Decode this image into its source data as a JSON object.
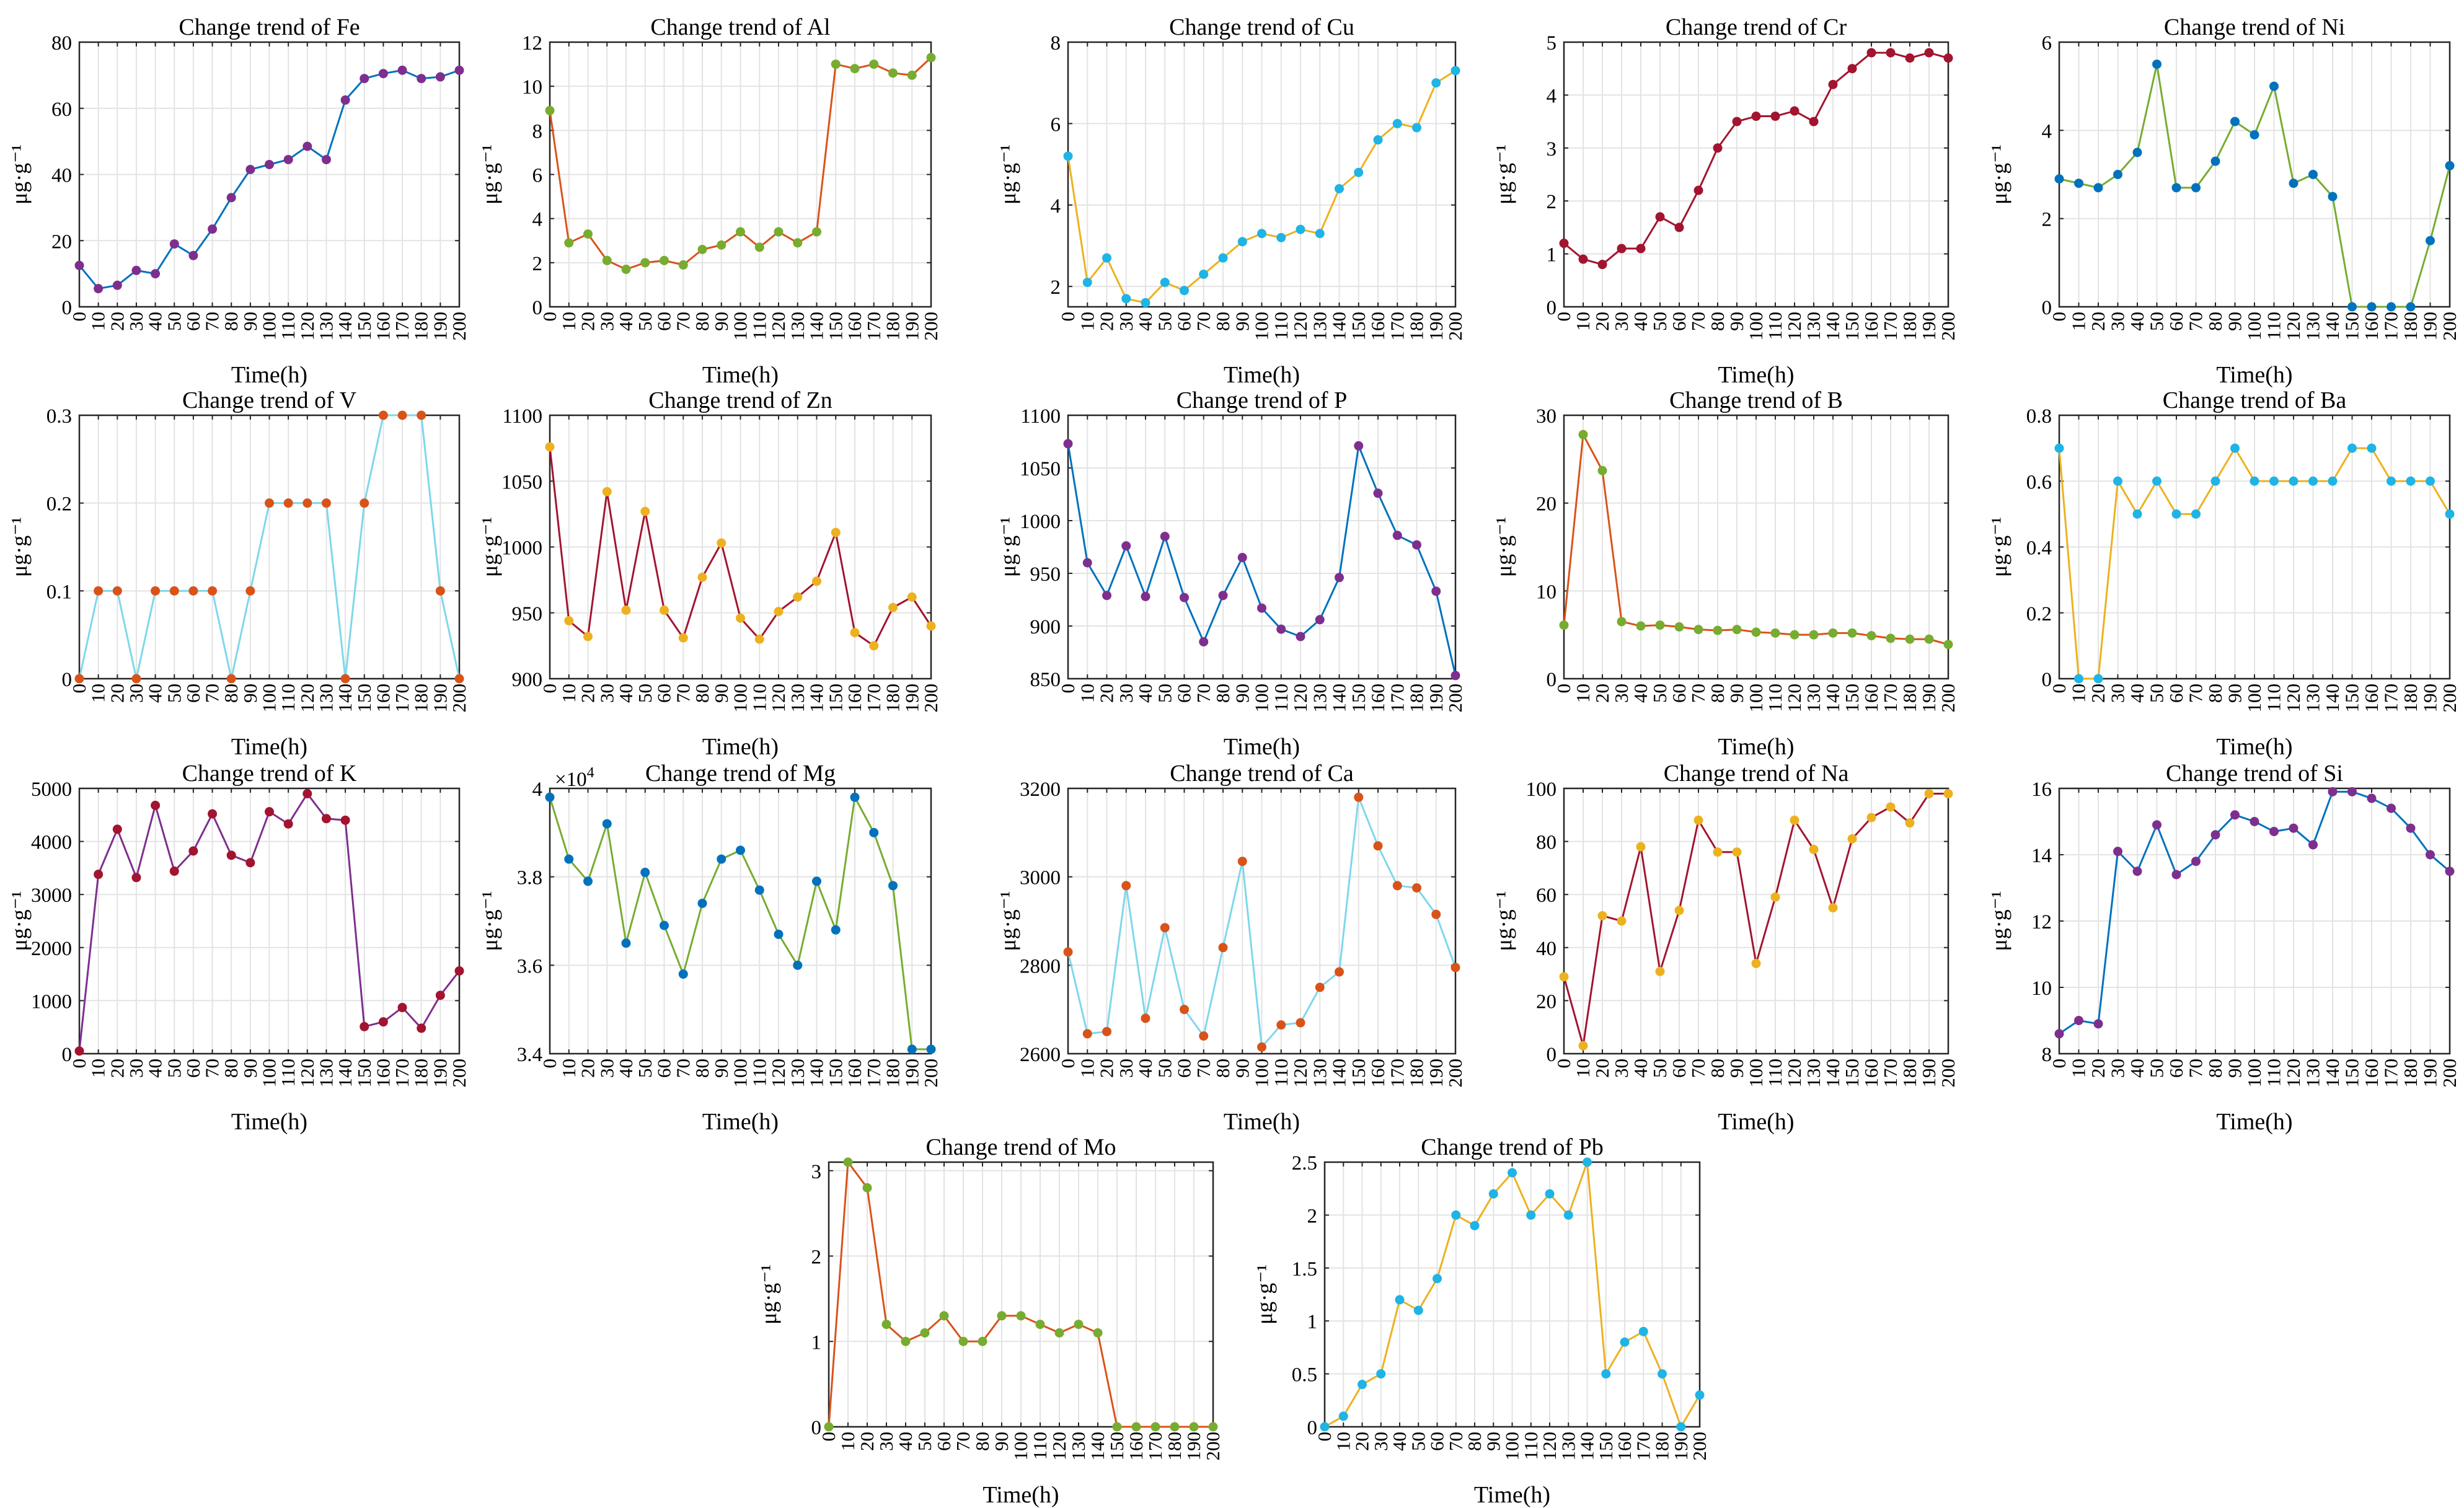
{
  "figure": {
    "background": "#ffffff"
  },
  "colors": {
    "purple": "#7e2f8e",
    "blue": "#0072bd",
    "orange": "#d95319",
    "yellow": "#edb120",
    "green": "#77ac30",
    "cyan": "#1eb4e6",
    "red": "#a2142f",
    "lightcyan": "#7fd7ec",
    "grid": "#e3e3e3",
    "axis": "#262626"
  },
  "x_ticks": [
    0,
    10,
    20,
    30,
    40,
    50,
    60,
    70,
    80,
    90,
    100,
    110,
    120,
    130,
    140,
    150,
    160,
    170,
    180,
    190,
    200
  ],
  "xlabel": "Time(h)",
  "ylabel": "μg·g⁻¹",
  "chart_data": [
    {
      "id": "fe",
      "type": "line",
      "title": "Change trend of Fe",
      "xlabel": "Time(h)",
      "ylabel": "μg·g⁻¹",
      "ylim": [
        0,
        80
      ],
      "yticks": [
        "0",
        "20",
        "40",
        "60",
        "80"
      ],
      "line_color": "#0072bd",
      "marker_colors": [
        "#7e2f8e"
      ],
      "values": [
        12.5,
        5.5,
        6.5,
        11,
        10,
        19,
        15.5,
        23.5,
        33,
        41.5,
        43,
        44.5,
        48.5,
        44.5,
        62.5,
        69,
        70.5,
        71.5,
        69,
        69.5,
        71.5
      ]
    },
    {
      "id": "al",
      "type": "line",
      "title": "Change trend of Al",
      "xlabel": "Time(h)",
      "ylabel": "μg·g⁻¹",
      "ylim": [
        0,
        12
      ],
      "yticks": [
        "0",
        "2",
        "4",
        "6",
        "8",
        "10",
        "12"
      ],
      "line_color": "#d95319",
      "marker_colors": [
        "#77ac30"
      ],
      "values": [
        8.9,
        2.9,
        3.3,
        2.1,
        1.7,
        2.0,
        2.1,
        1.9,
        2.6,
        2.8,
        3.4,
        2.7,
        3.4,
        2.9,
        3.4,
        11.0,
        10.8,
        11.0,
        10.6,
        10.5,
        11.3
      ]
    },
    {
      "id": "cu",
      "type": "line",
      "title": "Change trend of Cu",
      "xlabel": "Time(h)",
      "ylabel": "μg·g⁻¹",
      "ylim": [
        1.5,
        8
      ],
      "yticks": [
        "2",
        "4",
        "6",
        "8"
      ],
      "ytick_values": [
        2,
        4,
        6,
        8
      ],
      "line_color": "#edb120",
      "marker_colors": [
        "#1eb4e6"
      ],
      "values": [
        5.2,
        2.1,
        2.7,
        1.7,
        1.6,
        2.1,
        1.9,
        2.3,
        2.7,
        3.1,
        3.3,
        3.2,
        3.4,
        3.3,
        4.4,
        4.8,
        5.6,
        6.0,
        5.9,
        7.0,
        7.3
      ]
    },
    {
      "id": "cr",
      "type": "line",
      "title": "Change trend of Cr",
      "xlabel": "Time(h)",
      "ylabel": "μg·g⁻¹",
      "ylim": [
        0,
        5
      ],
      "yticks": [
        "0",
        "1",
        "2",
        "3",
        "4",
        "5"
      ],
      "line_color": "#a2142f",
      "marker_colors": [
        "#a2142f"
      ],
      "values": [
        1.2,
        0.9,
        0.8,
        1.1,
        1.1,
        1.7,
        1.5,
        2.2,
        3.0,
        3.5,
        3.6,
        3.6,
        3.7,
        3.5,
        4.2,
        4.5,
        4.8,
        4.8,
        4.7,
        4.8,
        4.7
      ]
    },
    {
      "id": "ni",
      "type": "line",
      "title": "Change trend of Ni",
      "xlabel": "Time(h)",
      "ylabel": "μg·g⁻¹",
      "ylim": [
        0,
        6
      ],
      "yticks": [
        "0",
        "2",
        "4",
        "6"
      ],
      "line_color": "#77ac30",
      "marker_colors": [
        "#0072bd"
      ],
      "values": [
        2.9,
        2.8,
        2.7,
        3.0,
        3.5,
        5.5,
        2.7,
        2.7,
        3.3,
        4.2,
        3.9,
        5.0,
        2.8,
        3.0,
        2.5,
        0,
        0,
        0,
        0,
        1.5,
        3.2
      ]
    },
    {
      "id": "v",
      "type": "line",
      "title": "Change trend of V",
      "xlabel": "Time(h)",
      "ylabel": "μg·g⁻¹",
      "ylim": [
        0,
        0.3
      ],
      "yticks": [
        "0",
        "0.1",
        "0.2",
        "0.3"
      ],
      "line_color": "#7fd7ec",
      "marker_colors": [
        "#d95319"
      ],
      "values": [
        0,
        0.1,
        0.1,
        0,
        0.1,
        0.1,
        0.1,
        0.1,
        0,
        0.1,
        0.2,
        0.2,
        0.2,
        0.2,
        0,
        0.2,
        0.3,
        0.3,
        0.3,
        0.1,
        0
      ]
    },
    {
      "id": "zn",
      "type": "line",
      "title": "Change trend of Zn",
      "xlabel": "Time(h)",
      "ylabel": "μg·g⁻¹",
      "ylim": [
        900,
        1100
      ],
      "yticks": [
        "900",
        "950",
        "1000",
        "1050",
        "1100"
      ],
      "line_color": "#a2142f",
      "marker_colors": [
        "#edb120"
      ],
      "values": [
        1076,
        944,
        932,
        1042,
        952,
        1027,
        952,
        931,
        977,
        1003,
        946,
        930,
        951,
        962,
        974,
        1011,
        935,
        925,
        954,
        962,
        940
      ]
    },
    {
      "id": "p",
      "type": "line",
      "title": "Change trend of P",
      "xlabel": "Time(h)",
      "ylabel": "μg·g⁻¹",
      "ylim": [
        850,
        1100
      ],
      "yticks": [
        "850",
        "900",
        "950",
        "1000",
        "1050",
        "1100"
      ],
      "line_color": "#0072bd",
      "marker_colors": [
        "#7e2f8e"
      ],
      "values": [
        1073,
        960,
        929,
        976,
        928,
        985,
        927,
        885,
        929,
        965,
        917,
        897,
        890,
        906,
        946,
        1071,
        1026,
        986,
        977,
        933,
        853
      ]
    },
    {
      "id": "b",
      "type": "line",
      "title": "Change trend of B",
      "xlabel": "Time(h)",
      "ylabel": "μg·g⁻¹",
      "ylim": [
        0,
        30
      ],
      "yticks": [
        "0",
        "10",
        "20",
        "30"
      ],
      "line_color": "#d95319",
      "marker_colors": [
        "#77ac30"
      ],
      "values": [
        6.1,
        27.8,
        23.7,
        6.5,
        6.0,
        6.1,
        5.9,
        5.6,
        5.5,
        5.6,
        5.3,
        5.2,
        5.0,
        5.0,
        5.2,
        5.2,
        4.9,
        4.6,
        4.5,
        4.5,
        3.9
      ]
    },
    {
      "id": "ba",
      "type": "line",
      "title": "Change trend of Ba",
      "xlabel": "Time(h)",
      "ylabel": "μg·g⁻¹",
      "ylim": [
        0,
        0.8
      ],
      "yticks": [
        "0",
        "0.2",
        "0.4",
        "0.6",
        "0.8"
      ],
      "line_color": "#edb120",
      "marker_colors": [
        "#1eb4e6"
      ],
      "values": [
        0.7,
        0,
        0,
        0.6,
        0.5,
        0.6,
        0.5,
        0.5,
        0.6,
        0.7,
        0.6,
        0.6,
        0.6,
        0.6,
        0.6,
        0.7,
        0.7,
        0.6,
        0.6,
        0.6,
        0.5
      ]
    },
    {
      "id": "k",
      "type": "line",
      "title": "Change trend of K",
      "xlabel": "Time(h)",
      "ylabel": "μg·g⁻¹",
      "ylim": [
        0,
        5000
      ],
      "yticks": [
        "0",
        "1000",
        "2000",
        "3000",
        "4000",
        "5000"
      ],
      "line_color": "#7e2f8e",
      "marker_colors": [
        "#a2142f"
      ],
      "values": [
        50,
        3380,
        4230,
        3320,
        4680,
        3440,
        3820,
        4520,
        3740,
        3600,
        4560,
        4330,
        4900,
        4430,
        4400,
        510,
        600,
        870,
        480,
        1100,
        1560
      ]
    },
    {
      "id": "mg",
      "type": "line",
      "title": "Change trend of Mg",
      "xlabel": "Time(h)",
      "ylabel": "μg·g⁻¹",
      "ylim": [
        3.4,
        4
      ],
      "yticks": [
        "3.4",
        "3.6",
        "3.8",
        "4"
      ],
      "exponent_label": "×10",
      "exponent_power": "4",
      "line_color": "#77ac30",
      "marker_colors": [
        "#0072bd"
      ],
      "values": [
        3.98,
        3.84,
        3.79,
        3.92,
        3.65,
        3.81,
        3.69,
        3.58,
        3.74,
        3.84,
        3.86,
        3.77,
        3.67,
        3.6,
        3.79,
        3.68,
        3.98,
        3.9,
        3.78,
        3.41,
        3.41
      ]
    },
    {
      "id": "ca",
      "type": "line",
      "title": "Change trend of Ca",
      "xlabel": "Time(h)",
      "ylabel": "μg·g⁻¹",
      "ylim": [
        2600,
        3200
      ],
      "yticks": [
        "2600",
        "2800",
        "3000",
        "3200"
      ],
      "line_color": "#7fd7ec",
      "marker_colors": [
        "#d95319"
      ],
      "values": [
        2830,
        2645,
        2650,
        2980,
        2680,
        2885,
        2700,
        2640,
        2840,
        3035,
        2615,
        2665,
        2670,
        2750,
        2785,
        3180,
        3070,
        2980,
        2975,
        2915,
        2795
      ]
    },
    {
      "id": "na",
      "type": "line",
      "title": "Change trend of Na",
      "xlabel": "Time(h)",
      "ylabel": "μg·g⁻¹",
      "ylim": [
        0,
        100
      ],
      "yticks": [
        "0",
        "20",
        "40",
        "60",
        "80",
        "100"
      ],
      "line_color": "#a2142f",
      "marker_colors": [
        "#edb120"
      ],
      "values": [
        29,
        3,
        52,
        50,
        78,
        31,
        54,
        88,
        76,
        76,
        34,
        59,
        88,
        77,
        55,
        81,
        89,
        93,
        87,
        98,
        98
      ]
    },
    {
      "id": "si",
      "type": "line",
      "title": "Change trend of Si",
      "xlabel": "Time(h)",
      "ylabel": "μg·g⁻¹",
      "ylim": [
        8,
        16
      ],
      "yticks": [
        "8",
        "10",
        "12",
        "14",
        "16"
      ],
      "line_color": "#0072bd",
      "marker_colors": [
        "#7e2f8e"
      ],
      "values": [
        8.6,
        9.0,
        8.9,
        14.1,
        13.5,
        14.9,
        13.4,
        13.8,
        14.6,
        15.2,
        15.0,
        14.7,
        14.8,
        14.3,
        15.9,
        15.9,
        15.7,
        15.4,
        14.8,
        14.0,
        13.5
      ]
    },
    {
      "id": "mo",
      "type": "line",
      "title": "Change trend of Mo",
      "xlabel": "Time(h)",
      "ylabel": "μg·g⁻¹",
      "ylim": [
        0,
        3.1
      ],
      "yticks": [
        "0",
        "1",
        "2",
        "3"
      ],
      "ytick_values": [
        0,
        1,
        2,
        3
      ],
      "line_color": "#d95319",
      "marker_colors": [
        "#77ac30"
      ],
      "values": [
        0,
        3.1,
        2.8,
        1.2,
        1.0,
        1.1,
        1.3,
        1.0,
        1.0,
        1.3,
        1.3,
        1.2,
        1.1,
        1.2,
        1.1,
        0,
        0,
        0,
        0,
        0,
        0
      ]
    },
    {
      "id": "pb",
      "type": "line",
      "title": "Change trend of Pb",
      "xlabel": "Time(h)",
      "ylabel": "μg·g⁻¹",
      "ylim": [
        0,
        2.5
      ],
      "yticks": [
        "0",
        "0.5",
        "1",
        "1.5",
        "2",
        "2.5"
      ],
      "line_color": "#edb120",
      "marker_colors": [
        "#1eb4e6"
      ],
      "values": [
        0,
        0.1,
        0.4,
        0.5,
        1.2,
        1.1,
        1.4,
        2.0,
        1.9,
        2.2,
        2.4,
        2.0,
        2.2,
        2.0,
        2.5,
        0.5,
        0.8,
        0.9,
        0.5,
        0,
        0.3
      ]
    }
  ]
}
